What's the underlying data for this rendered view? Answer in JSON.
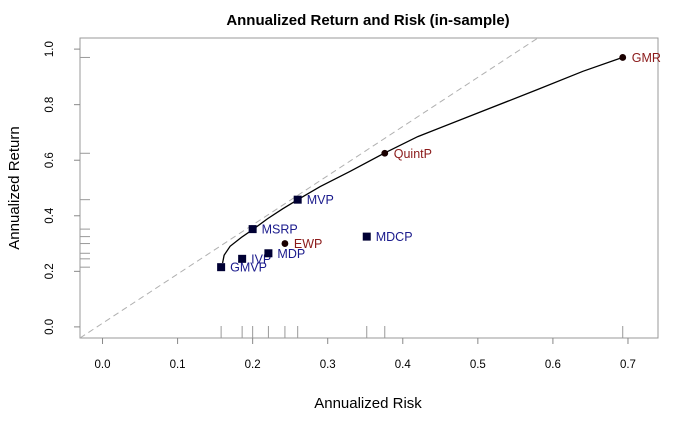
{
  "chart_data": {
    "type": "scatter",
    "title": "Annualized Return and Risk (in-sample)",
    "xlabel": "Annualized Risk",
    "ylabel": "Annualized Return",
    "xlim": [
      -0.03,
      0.74
    ],
    "ylim": [
      -0.04,
      1.04
    ],
    "x_ticks": [
      "0.0",
      "0.1",
      "0.2",
      "0.3",
      "0.4",
      "0.5",
      "0.6",
      "0.7"
    ],
    "x_tick_values": [
      0,
      0.1,
      0.2,
      0.3,
      0.4,
      0.5,
      0.6,
      0.7
    ],
    "y_ticks": [
      "0.0",
      "0.2",
      "0.4",
      "0.6",
      "0.8",
      "1.0"
    ],
    "y_tick_values": [
      0,
      0.2,
      0.4,
      0.6,
      0.8,
      1.0
    ],
    "grid": false,
    "reference_line": {
      "style": "dashed",
      "color": "#b0b0b0",
      "from": [
        -0.03,
        -0.04
      ],
      "to": [
        0.58,
        1.04
      ]
    },
    "frontier": {
      "color": "#000000",
      "x": [
        0.16,
        0.162,
        0.17,
        0.185,
        0.2,
        0.22,
        0.24,
        0.26,
        0.29,
        0.33,
        0.375,
        0.42,
        0.5,
        0.58,
        0.64,
        0.693
      ],
      "y": [
        0.23,
        0.258,
        0.29,
        0.322,
        0.35,
        0.39,
        0.425,
        0.458,
        0.505,
        0.56,
        0.625,
        0.685,
        0.77,
        0.855,
        0.92,
        0.97
      ]
    },
    "points": [
      {
        "label": "GMVP",
        "x": 0.158,
        "y": 0.215,
        "marker": "square",
        "color": "#000033",
        "label_color": "#1a1a8c"
      },
      {
        "label": "IVP",
        "x": 0.186,
        "y": 0.245,
        "marker": "square",
        "color": "#000033",
        "label_color": "#1a1a8c"
      },
      {
        "label": "MDP",
        "x": 0.221,
        "y": 0.265,
        "marker": "square",
        "color": "#000033",
        "label_color": "#1a1a8c"
      },
      {
        "label": "MSRP",
        "x": 0.2,
        "y": 0.352,
        "marker": "square",
        "color": "#000033",
        "label_color": "#1a1a8c"
      },
      {
        "label": "MVP",
        "x": 0.26,
        "y": 0.458,
        "marker": "square",
        "color": "#000033",
        "label_color": "#1a1a8c"
      },
      {
        "label": "MDCP",
        "x": 0.352,
        "y": 0.325,
        "marker": "square",
        "color": "#000033",
        "label_color": "#1a1a8c"
      },
      {
        "label": "EWP",
        "x": 0.243,
        "y": 0.3,
        "marker": "circle",
        "color": "#1a0000",
        "label_color": "#8b1a1a"
      },
      {
        "label": "QuintP",
        "x": 0.376,
        "y": 0.625,
        "marker": "circle",
        "color": "#1a0000",
        "label_color": "#8b1a1a"
      },
      {
        "label": "GMR",
        "x": 0.693,
        "y": 0.97,
        "marker": "circle",
        "color": "#1a0000",
        "label_color": "#8b1a1a"
      }
    ],
    "rug_x": [
      0.158,
      0.186,
      0.2,
      0.221,
      0.243,
      0.26,
      0.352,
      0.376,
      0.693
    ],
    "rug_y": [
      0.215,
      0.245,
      0.265,
      0.3,
      0.325,
      0.352,
      0.458,
      0.625,
      0.97
    ]
  }
}
